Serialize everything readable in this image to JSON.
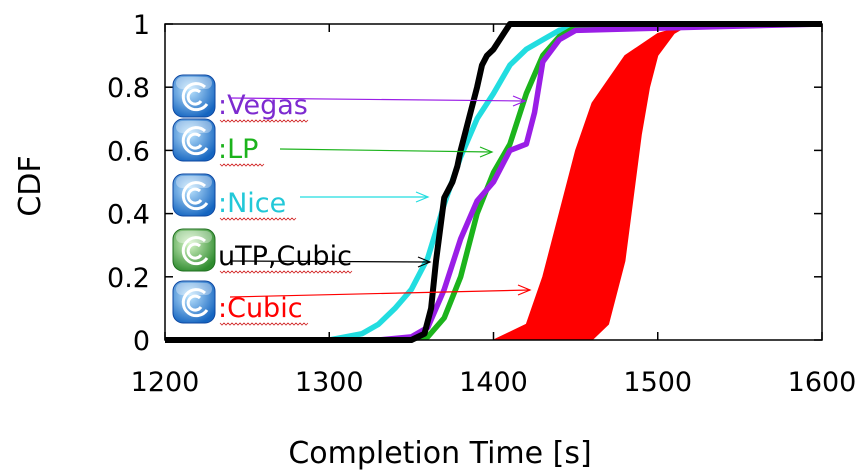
{
  "chart_data": {
    "type": "line",
    "title": "",
    "xlabel": "Completion Time [s]",
    "ylabel": "CDF",
    "xlim": [
      1200,
      1600
    ],
    "ylim": [
      0,
      1
    ],
    "xticks": [
      1200,
      1300,
      1400,
      1500,
      1600
    ],
    "yticks": [
      0,
      0.2,
      0.4,
      0.6,
      0.8,
      1
    ],
    "grid": false,
    "legend_placement": "left, stacked vertically, with arrows pointing to each series",
    "series": [
      {
        "name": ":Vegas",
        "color": "#9a1ee6",
        "icon": "torrent-client-blue-icon",
        "x": [
          1200,
          1330,
          1350,
          1360,
          1370,
          1380,
          1390,
          1400,
          1410,
          1420,
          1425,
          1430,
          1440,
          1450,
          1600
        ],
        "y": [
          0,
          0,
          0.01,
          0.04,
          0.16,
          0.32,
          0.44,
          0.5,
          0.6,
          0.62,
          0.72,
          0.88,
          0.95,
          0.98,
          1
        ]
      },
      {
        "name": ":LP",
        "color": "#1cb31c",
        "icon": "torrent-client-blue-icon",
        "x": [
          1200,
          1340,
          1360,
          1370,
          1380,
          1390,
          1400,
          1410,
          1420,
          1430,
          1440,
          1450,
          1600
        ],
        "y": [
          0,
          0,
          0.01,
          0.07,
          0.2,
          0.4,
          0.53,
          0.62,
          0.78,
          0.9,
          0.96,
          0.99,
          1
        ]
      },
      {
        "name": ":Nice",
        "color": "#22dde0",
        "icon": "torrent-client-blue-icon",
        "x": [
          1200,
          1300,
          1320,
          1330,
          1340,
          1350,
          1360,
          1370,
          1380,
          1390,
          1400,
          1410,
          1420,
          1430,
          1440,
          1450,
          1600
        ],
        "y": [
          0,
          0,
          0.02,
          0.05,
          0.1,
          0.16,
          0.26,
          0.43,
          0.58,
          0.7,
          0.78,
          0.87,
          0.92,
          0.95,
          0.98,
          0.99,
          1
        ]
      },
      {
        "name": "uTP,Cubic",
        "color": "#000000",
        "icon": "torrent-client-green-icon",
        "x": [
          1200,
          1350,
          1358,
          1362,
          1365,
          1370,
          1372,
          1375,
          1378,
          1380,
          1385,
          1390,
          1393,
          1396,
          1400,
          1405,
          1410,
          1600
        ],
        "y": [
          0,
          0,
          0.02,
          0.1,
          0.25,
          0.45,
          0.47,
          0.5,
          0.55,
          0.6,
          0.7,
          0.8,
          0.87,
          0.9,
          0.92,
          0.96,
          1,
          1
        ]
      },
      {
        "name": ":Cubic",
        "color": "#ff0000",
        "icon": "torrent-client-blue-icon",
        "type": "band",
        "band_lower": {
          "x": [
            1400,
            1420,
            1430,
            1440,
            1450,
            1460,
            1480,
            1500,
            1520
          ],
          "y": [
            0,
            0.05,
            0.2,
            0.4,
            0.6,
            0.75,
            0.9,
            0.97,
            1
          ]
        },
        "band_upper": {
          "x": [
            1460,
            1470,
            1480,
            1485,
            1490,
            1495,
            1500,
            1510,
            1520
          ],
          "y": [
            0,
            0.05,
            0.25,
            0.45,
            0.65,
            0.8,
            0.9,
            0.97,
            1
          ]
        }
      }
    ]
  }
}
